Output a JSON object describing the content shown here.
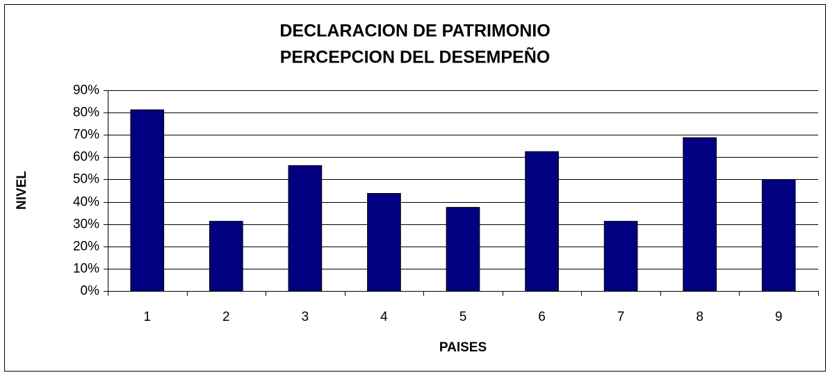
{
  "chart_data": {
    "type": "bar",
    "title": [
      "DECLARACION DE PATRIMONIO",
      "PERCEPCION DEL DESEMPEÑO"
    ],
    "x_label": "PAISES",
    "y_label": "NIVEL",
    "categories": [
      "1",
      "2",
      "3",
      "4",
      "5",
      "6",
      "7",
      "8",
      "9"
    ],
    "values": [
      81.25,
      31.25,
      56.25,
      43.75,
      37.5,
      62.5,
      31.25,
      68.75,
      50
    ],
    "color": "#000080",
    "ylim": [
      0,
      90
    ],
    "yticks": [
      {
        "value": 0,
        "label": "0%"
      },
      {
        "value": 10,
        "label": "10%"
      },
      {
        "value": 20,
        "label": "20%"
      },
      {
        "value": 30,
        "label": "30%"
      },
      {
        "value": 40,
        "label": "40%"
      },
      {
        "value": 50,
        "label": "50%"
      },
      {
        "value": 60,
        "label": "60%"
      },
      {
        "value": 70,
        "label": "70%"
      },
      {
        "value": 80,
        "label": "80%"
      },
      {
        "value": 90,
        "label": "90%"
      }
    ],
    "grid": true
  }
}
